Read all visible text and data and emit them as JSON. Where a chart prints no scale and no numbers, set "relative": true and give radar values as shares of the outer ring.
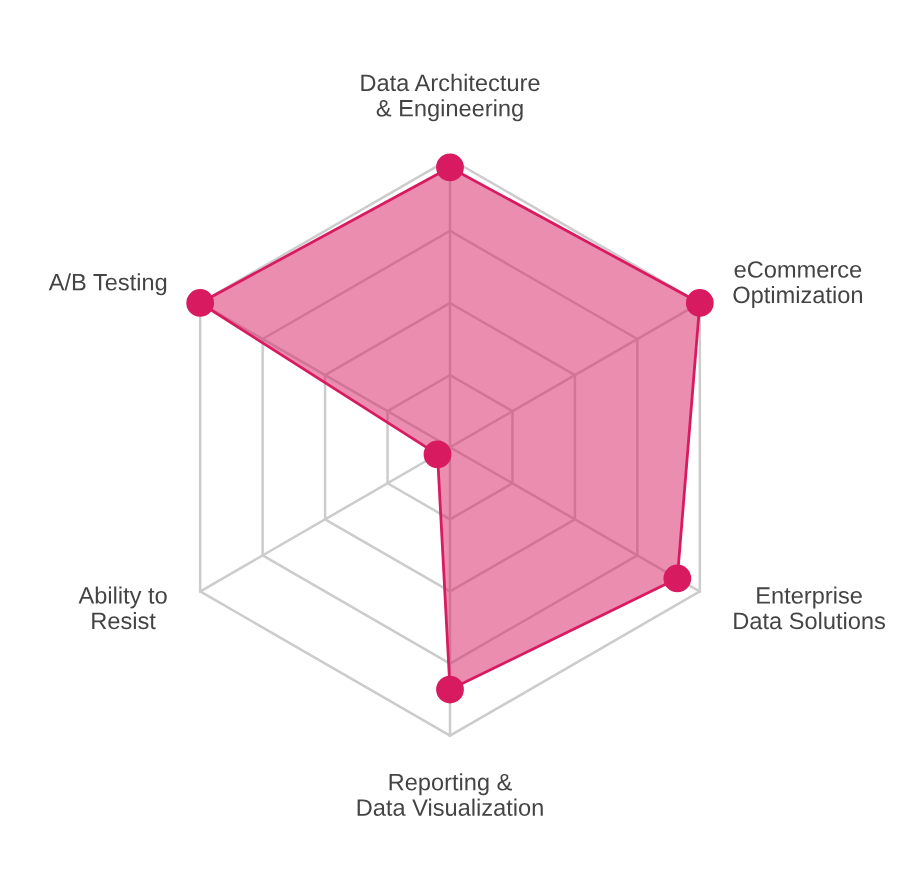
{
  "chart_data": {
    "type": "radar",
    "relative": true,
    "categories": [
      "Data Architecture\n& Engineering",
      "eCommerce\nOptimization",
      "Enterprise\nData Solutions",
      "Reporting &\nData Visualization",
      "Ability to\nResist",
      "A/B Testing"
    ],
    "series": [
      {
        "color": "#d81b60",
        "values": [
          0.97,
          1.0,
          0.91,
          0.84,
          0.05,
          1.0
        ]
      }
    ],
    "grid": true,
    "marker": "circle"
  }
}
